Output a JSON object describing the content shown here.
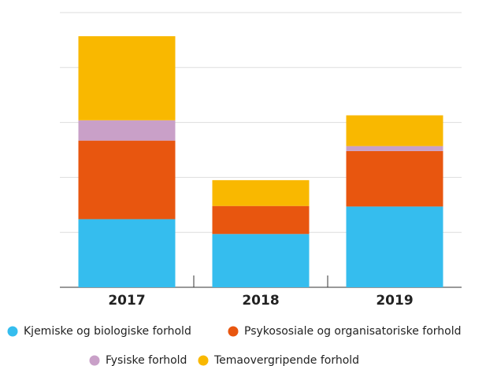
{
  "chart_data": {
    "type": "stacked_bar",
    "categories": [
      "2017",
      "2018",
      "2019"
    ],
    "series": [
      {
        "name": "Kjemiske og biologiske forhold",
        "color": "#35bdee",
        "values": [
          12.4,
          9.7,
          14.7
        ]
      },
      {
        "name": "Psykososiale og organisatoriske forhold",
        "color": "#e8560f",
        "values": [
          14.3,
          5.1,
          10.1
        ]
      },
      {
        "name": "Fysiske forhold",
        "color": "#c9a0c8",
        "values": [
          3.7,
          0,
          0.9
        ]
      },
      {
        "name": "Temaovergripende forhold",
        "color": "#f9b800",
        "values": [
          15.3,
          4.7,
          5.6
        ]
      }
    ],
    "ylim": [
      0,
      50
    ],
    "yticks": [
      0,
      10,
      20,
      30,
      40,
      50
    ],
    "grid": true
  }
}
